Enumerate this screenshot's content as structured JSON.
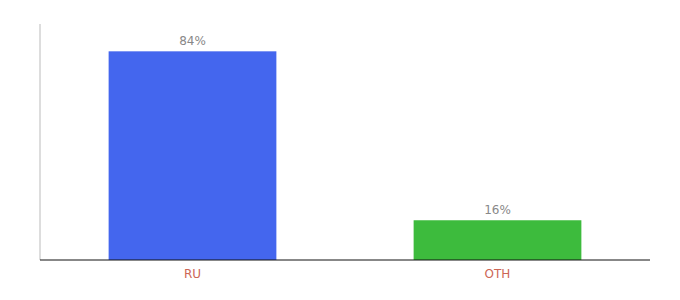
{
  "chart_data": {
    "type": "bar",
    "categories": [
      "RU",
      "OTH"
    ],
    "values": [
      84,
      16
    ],
    "value_labels": [
      "84%",
      "16%"
    ],
    "colors": [
      "#4466ee",
      "#3dbb3d"
    ],
    "ylim": [
      0,
      95
    ],
    "data_labels": true,
    "tick_labels": "x",
    "grid": false
  }
}
